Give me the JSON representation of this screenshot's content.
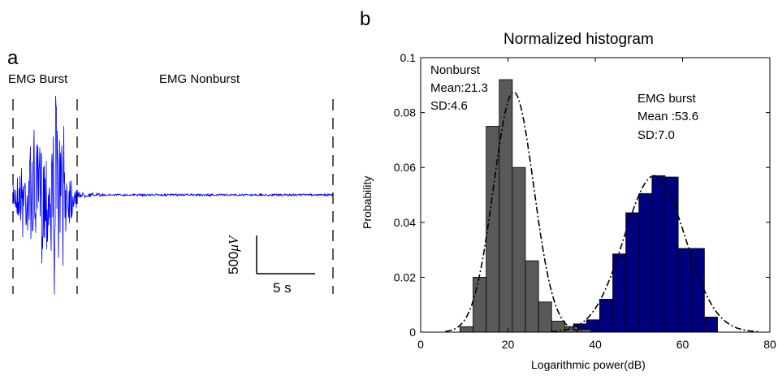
{
  "panel_a": {
    "letter": "a",
    "label_burst": "EMG Burst",
    "label_nonburst": "EMG Nonburst",
    "scale_amplitude": "500",
    "scale_amplitude_unit": "μV",
    "scale_time": "5 s",
    "trace_color": "#0000ff"
  },
  "panel_b": {
    "letter": "b",
    "nonburst_annotation": [
      "Nonburst",
      "Mean:21.3",
      "SD:4.6"
    ],
    "burst_annotation": [
      "EMG burst",
      "Mean :53.6",
      "SD:7.0"
    ]
  },
  "chart_data": [
    {
      "type": "bar",
      "title": "Normalized histogram",
      "xlabel": "Logarithmic power(dB)",
      "ylabel": "Probability",
      "xlim": [
        0,
        80
      ],
      "ylim": [
        0,
        0.1
      ],
      "xticks": [
        "0",
        "20",
        "40",
        "60",
        "80"
      ],
      "yticks": [
        "0",
        "0.02",
        "0.04",
        "0.06",
        "0.08",
        "0.1"
      ],
      "grid": false,
      "bin_width": 3,
      "series": [
        {
          "name": "Nonburst",
          "color": "#595959",
          "bin_centers": [
            10.5,
            13.5,
            16.5,
            19.5,
            22.5,
            25.5,
            28.5,
            31.5,
            34.5,
            37.5
          ],
          "values": [
            0.002,
            0.02,
            0.075,
            0.092,
            0.06,
            0.026,
            0.011,
            0.004,
            0.002,
            0.001
          ]
        },
        {
          "name": "EMG burst",
          "color": "#00007f",
          "bin_centers": [
            24.5,
            27.5,
            30.5,
            33.5,
            36.5,
            39.5,
            42.5,
            45.5,
            48.5,
            51.5,
            54.5,
            57.5,
            60.5,
            63.5,
            66.5
          ],
          "values": [
            0.001,
            0.0005,
            0.001,
            0.002,
            0.003,
            0.0045,
            0.012,
            0.0285,
            0.0435,
            0.0505,
            0.057,
            0.0565,
            0.0305,
            0.0305,
            0.0055
          ]
        }
      ],
      "fits": [
        {
          "mean": 21.3,
          "sd": 4.6,
          "style": "dash-dot"
        },
        {
          "mean": 53.6,
          "sd": 7.0,
          "style": "dash-dot"
        }
      ]
    }
  ]
}
